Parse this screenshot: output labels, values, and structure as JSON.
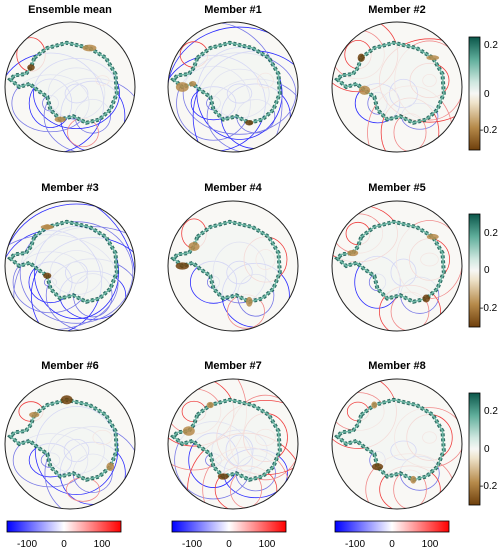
{
  "chart_data": {
    "type": "map",
    "projection": "south-polar-stereographic",
    "panels": [
      {
        "title": "Ensemble mean"
      },
      {
        "title": "Member #1"
      },
      {
        "title": "Member #2"
      },
      {
        "title": "Member #3"
      },
      {
        "title": "Member #4"
      },
      {
        "title": "Member #5"
      },
      {
        "title": "Member #6"
      },
      {
        "title": "Member #7"
      },
      {
        "title": "Member #8"
      }
    ],
    "shading_colorbar": {
      "orientation": "vertical",
      "range": [
        -0.3,
        0.3
      ],
      "ticks": [
        "0.2",
        "0",
        "-0.2"
      ],
      "colors": [
        "#7a4a10",
        "#c8a160",
        "#f5efe0",
        "#d6ece6",
        "#6fb8a6",
        "#115e52"
      ]
    },
    "contour_colorbar": {
      "orientation": "horizontal",
      "range": [
        -140,
        140
      ],
      "ticks": [
        "-100",
        "0",
        "100"
      ],
      "colors": [
        "#0000ff",
        "#ffffff",
        "#ff0000"
      ]
    }
  }
}
